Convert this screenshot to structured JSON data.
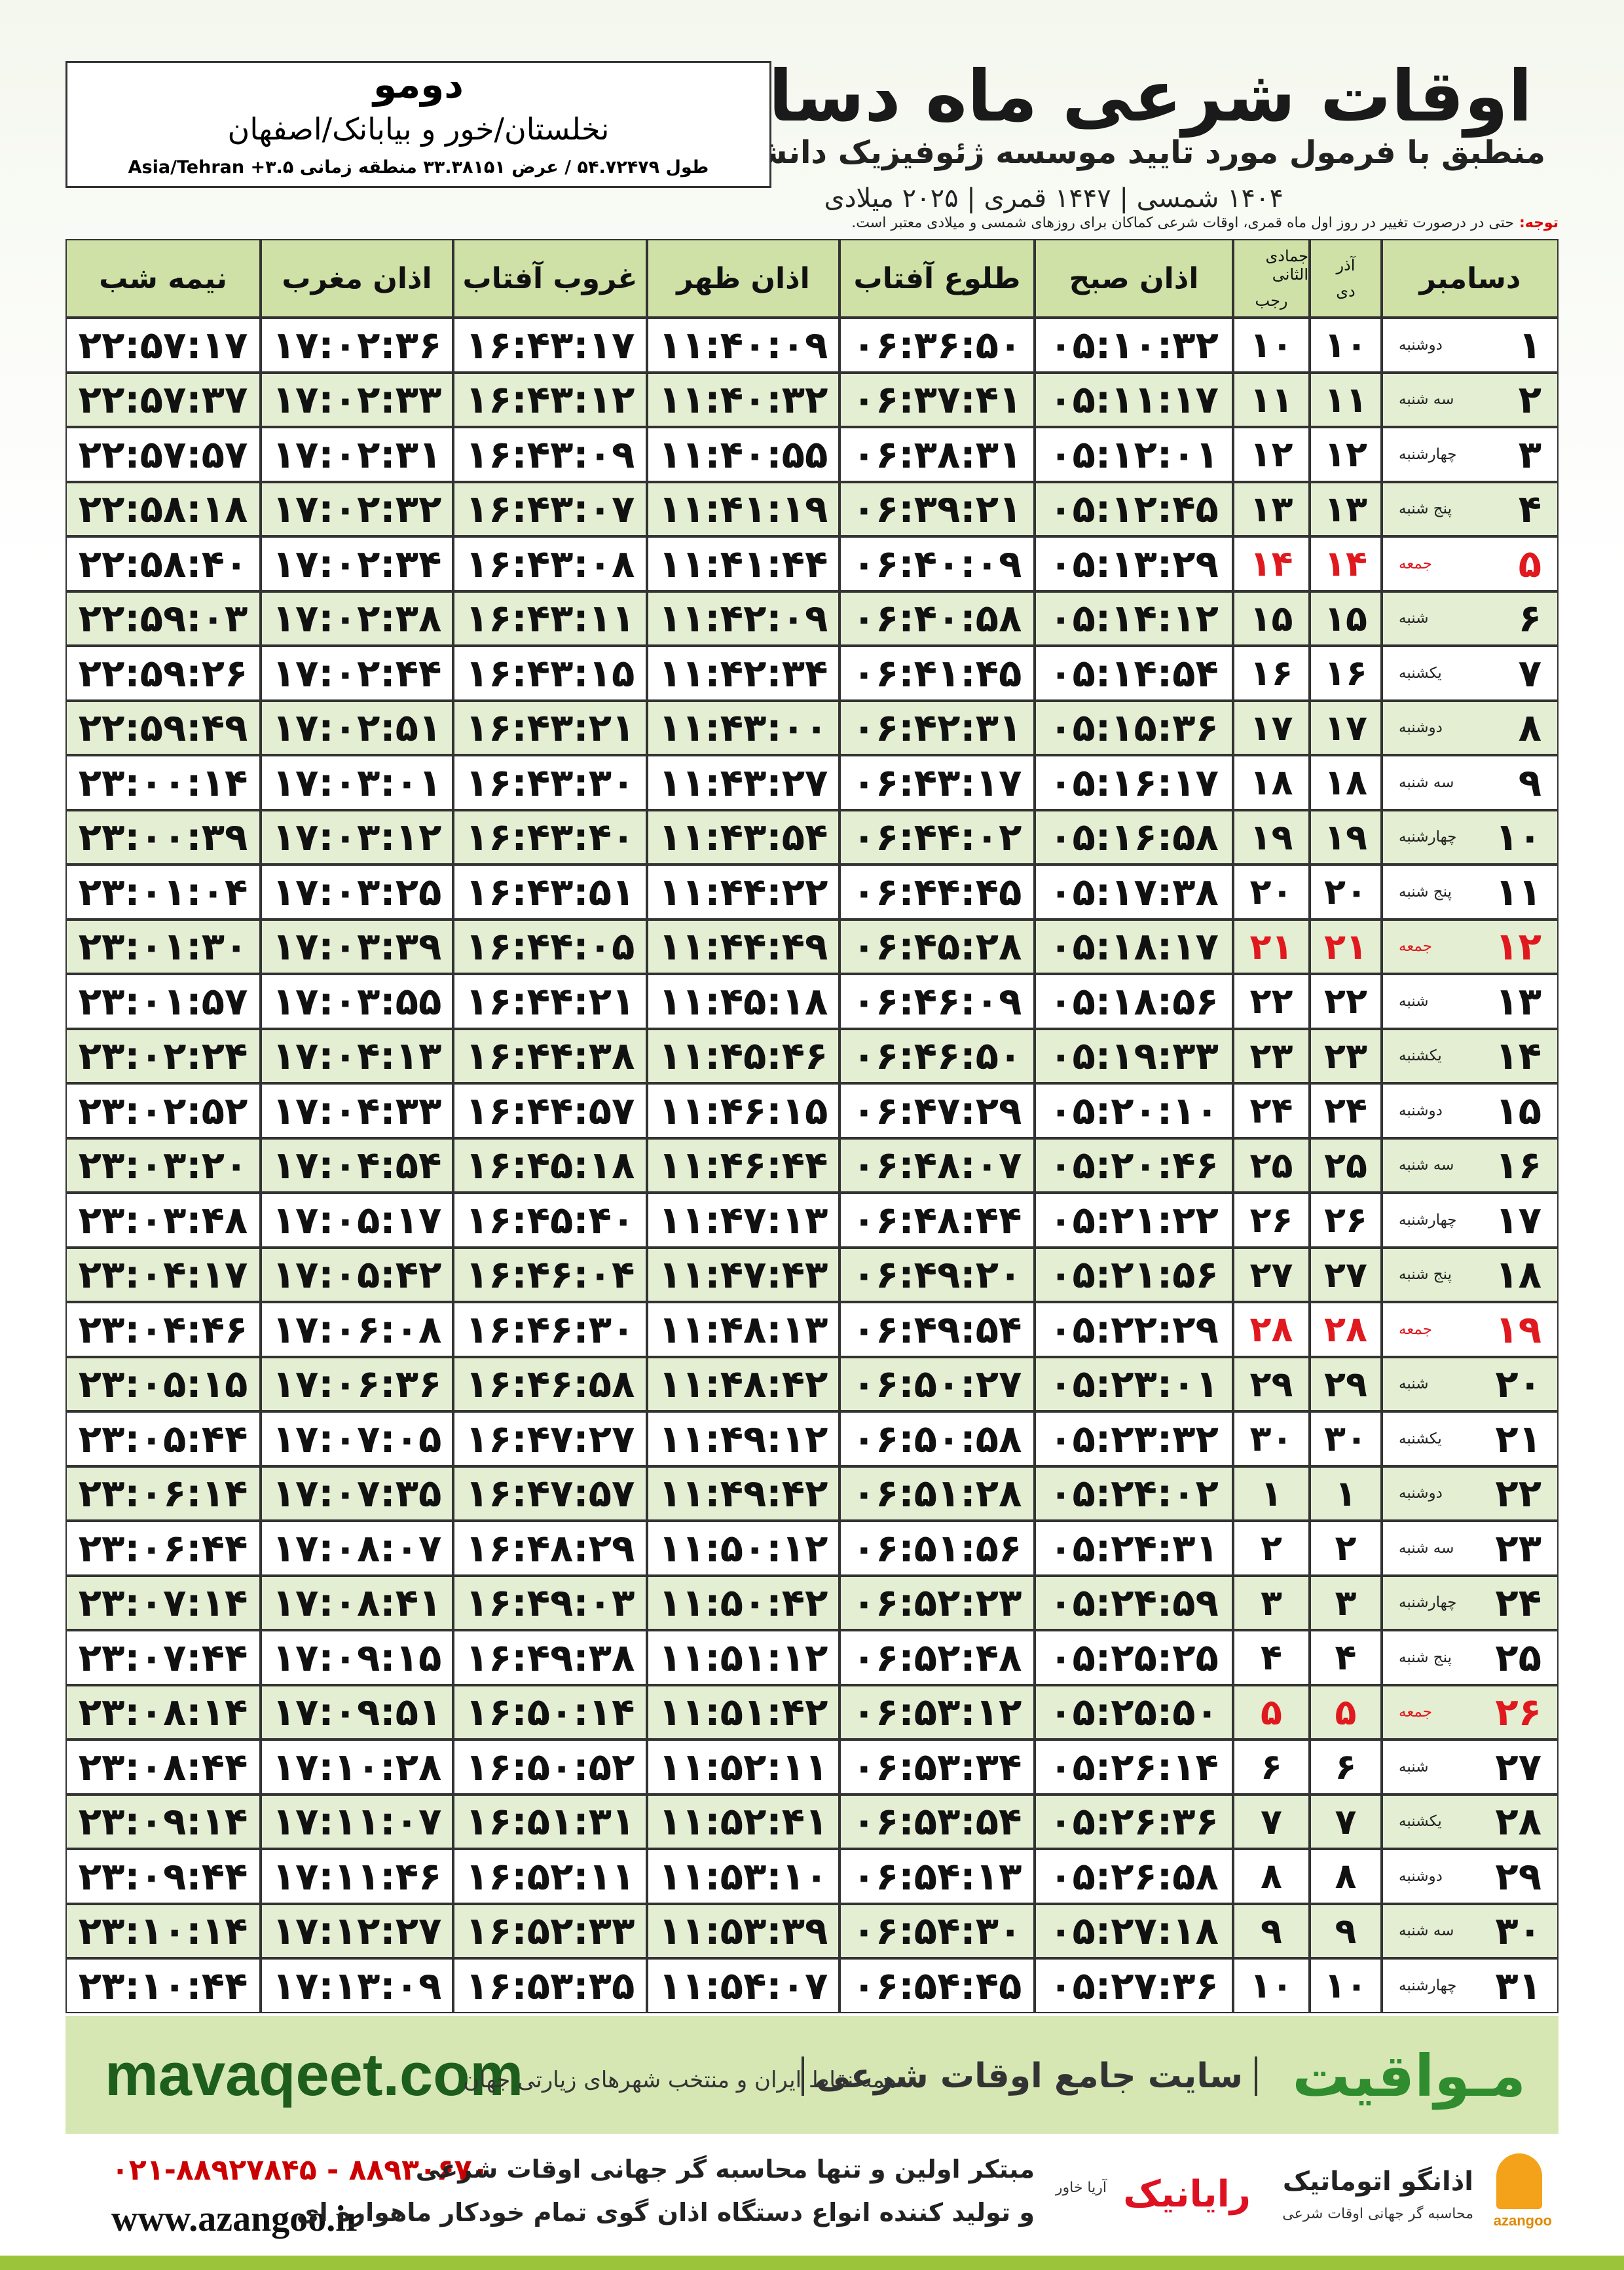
{
  "header": {
    "title": "اوقات شرعی ماه دسامبر",
    "subtitle": "منطبق با فرمول مورد تایید موسسه ژئوفیزیک دانشگاه تهران",
    "dates": "۱۴۰۴ شمسی | ۱۴۴۷ قمری | ۲۰۲۵ میلادی"
  },
  "location": {
    "name": "دومو",
    "region": "نخلستان/خور و بیابانک/اصفهان",
    "coords": "طول ۵۴.۷۲۴۷۹ / عرض ۳۳.۳۸۱۵۱ منطقه زمانی ۳.۵+ Asia/Tehran"
  },
  "note": {
    "label": "توجه:",
    "text": "حتی در درصورت تغییر در روز اول ماه قمری، اوقات شرعی کماکان برای روزهای شمسی و میلادی معتبر است."
  },
  "table": {
    "columns": [
      "دسامبر",
      [
        "آذر",
        "دی"
      ],
      [
        "جمادی الثانی",
        "رجب"
      ],
      "اذان صبح",
      "طلوع آفتاب",
      "اذان ظهر",
      "غروب آفتاب",
      "اذان مغرب",
      "نیمه شب"
    ],
    "rows": [
      [
        "۱",
        "دوشنبه",
        "۱۰",
        "۱۰",
        "۰۵:۱۰:۳۲",
        "۰۶:۳۶:۵۰",
        "۱۱:۴۰:۰۹",
        "۱۶:۴۳:۱۷",
        "۱۷:۰۲:۳۶",
        "۲۲:۵۷:۱۷"
      ],
      [
        "۲",
        "سه شنبه",
        "۱۱",
        "۱۱",
        "۰۵:۱۱:۱۷",
        "۰۶:۳۷:۴۱",
        "۱۱:۴۰:۳۲",
        "۱۶:۴۳:۱۲",
        "۱۷:۰۲:۳۳",
        "۲۲:۵۷:۳۷"
      ],
      [
        "۳",
        "چهارشنبه",
        "۱۲",
        "۱۲",
        "۰۵:۱۲:۰۱",
        "۰۶:۳۸:۳۱",
        "۱۱:۴۰:۵۵",
        "۱۶:۴۳:۰۹",
        "۱۷:۰۲:۳۱",
        "۲۲:۵۷:۵۷"
      ],
      [
        "۴",
        "پنج شنبه",
        "۱۳",
        "۱۳",
        "۰۵:۱۲:۴۵",
        "۰۶:۳۹:۲۱",
        "۱۱:۴۱:۱۹",
        "۱۶:۴۳:۰۷",
        "۱۷:۰۲:۳۲",
        "۲۲:۵۸:۱۸"
      ],
      [
        "۵",
        "جمعه",
        "۱۴",
        "۱۴",
        "۰۵:۱۳:۲۹",
        "۰۶:۴۰:۰۹",
        "۱۱:۴۱:۴۴",
        "۱۶:۴۳:۰۸",
        "۱۷:۰۲:۳۴",
        "۲۲:۵۸:۴۰"
      ],
      [
        "۶",
        "شنبه",
        "۱۵",
        "۱۵",
        "۰۵:۱۴:۱۲",
        "۰۶:۴۰:۵۸",
        "۱۱:۴۲:۰۹",
        "۱۶:۴۳:۱۱",
        "۱۷:۰۲:۳۸",
        "۲۲:۵۹:۰۳"
      ],
      [
        "۷",
        "یکشنبه",
        "۱۶",
        "۱۶",
        "۰۵:۱۴:۵۴",
        "۰۶:۴۱:۴۵",
        "۱۱:۴۲:۳۴",
        "۱۶:۴۳:۱۵",
        "۱۷:۰۲:۴۴",
        "۲۲:۵۹:۲۶"
      ],
      [
        "۸",
        "دوشنبه",
        "۱۷",
        "۱۷",
        "۰۵:۱۵:۳۶",
        "۰۶:۴۲:۳۱",
        "۱۱:۴۳:۰۰",
        "۱۶:۴۳:۲۱",
        "۱۷:۰۲:۵۱",
        "۲۲:۵۹:۴۹"
      ],
      [
        "۹",
        "سه شنبه",
        "۱۸",
        "۱۸",
        "۰۵:۱۶:۱۷",
        "۰۶:۴۳:۱۷",
        "۱۱:۴۳:۲۷",
        "۱۶:۴۳:۳۰",
        "۱۷:۰۳:۰۱",
        "۲۳:۰۰:۱۴"
      ],
      [
        "۱۰",
        "چهارشنبه",
        "۱۹",
        "۱۹",
        "۰۵:۱۶:۵۸",
        "۰۶:۴۴:۰۲",
        "۱۱:۴۳:۵۴",
        "۱۶:۴۳:۴۰",
        "۱۷:۰۳:۱۲",
        "۲۳:۰۰:۳۹"
      ],
      [
        "۱۱",
        "پنج شنبه",
        "۲۰",
        "۲۰",
        "۰۵:۱۷:۳۸",
        "۰۶:۴۴:۴۵",
        "۱۱:۴۴:۲۲",
        "۱۶:۴۳:۵۱",
        "۱۷:۰۳:۲۵",
        "۲۳:۰۱:۰۴"
      ],
      [
        "۱۲",
        "جمعه",
        "۲۱",
        "۲۱",
        "۰۵:۱۸:۱۷",
        "۰۶:۴۵:۲۸",
        "۱۱:۴۴:۴۹",
        "۱۶:۴۴:۰۵",
        "۱۷:۰۳:۳۹",
        "۲۳:۰۱:۳۰"
      ],
      [
        "۱۳",
        "شنبه",
        "۲۲",
        "۲۲",
        "۰۵:۱۸:۵۶",
        "۰۶:۴۶:۰۹",
        "۱۱:۴۵:۱۸",
        "۱۶:۴۴:۲۱",
        "۱۷:۰۳:۵۵",
        "۲۳:۰۱:۵۷"
      ],
      [
        "۱۴",
        "یکشنبه",
        "۲۳",
        "۲۳",
        "۰۵:۱۹:۳۳",
        "۰۶:۴۶:۵۰",
        "۱۱:۴۵:۴۶",
        "۱۶:۴۴:۳۸",
        "۱۷:۰۴:۱۳",
        "۲۳:۰۲:۲۴"
      ],
      [
        "۱۵",
        "دوشنبه",
        "۲۴",
        "۲۴",
        "۰۵:۲۰:۱۰",
        "۰۶:۴۷:۲۹",
        "۱۱:۴۶:۱۵",
        "۱۶:۴۴:۵۷",
        "۱۷:۰۴:۳۳",
        "۲۳:۰۲:۵۲"
      ],
      [
        "۱۶",
        "سه شنبه",
        "۲۵",
        "۲۵",
        "۰۵:۲۰:۴۶",
        "۰۶:۴۸:۰۷",
        "۱۱:۴۶:۴۴",
        "۱۶:۴۵:۱۸",
        "۱۷:۰۴:۵۴",
        "۲۳:۰۳:۲۰"
      ],
      [
        "۱۷",
        "چهارشنبه",
        "۲۶",
        "۲۶",
        "۰۵:۲۱:۲۲",
        "۰۶:۴۸:۴۴",
        "۱۱:۴۷:۱۳",
        "۱۶:۴۵:۴۰",
        "۱۷:۰۵:۱۷",
        "۲۳:۰۳:۴۸"
      ],
      [
        "۱۸",
        "پنج شنبه",
        "۲۷",
        "۲۷",
        "۰۵:۲۱:۵۶",
        "۰۶:۴۹:۲۰",
        "۱۱:۴۷:۴۳",
        "۱۶:۴۶:۰۴",
        "۱۷:۰۵:۴۲",
        "۲۳:۰۴:۱۷"
      ],
      [
        "۱۹",
        "جمعه",
        "۲۸",
        "۲۸",
        "۰۵:۲۲:۲۹",
        "۰۶:۴۹:۵۴",
        "۱۱:۴۸:۱۳",
        "۱۶:۴۶:۳۰",
        "۱۷:۰۶:۰۸",
        "۲۳:۰۴:۴۶"
      ],
      [
        "۲۰",
        "شنبه",
        "۲۹",
        "۲۹",
        "۰۵:۲۳:۰۱",
        "۰۶:۵۰:۲۷",
        "۱۱:۴۸:۴۲",
        "۱۶:۴۶:۵۸",
        "۱۷:۰۶:۳۶",
        "۲۳:۰۵:۱۵"
      ],
      [
        "۲۱",
        "یکشنبه",
        "۳۰",
        "۳۰",
        "۰۵:۲۳:۳۲",
        "۰۶:۵۰:۵۸",
        "۱۱:۴۹:۱۲",
        "۱۶:۴۷:۲۷",
        "۱۷:۰۷:۰۵",
        "۲۳:۰۵:۴۴"
      ],
      [
        "۲۲",
        "دوشنبه",
        "۱",
        "۱",
        "۰۵:۲۴:۰۲",
        "۰۶:۵۱:۲۸",
        "۱۱:۴۹:۴۲",
        "۱۶:۴۷:۵۷",
        "۱۷:۰۷:۳۵",
        "۲۳:۰۶:۱۴"
      ],
      [
        "۲۳",
        "سه شنبه",
        "۲",
        "۲",
        "۰۵:۲۴:۳۱",
        "۰۶:۵۱:۵۶",
        "۱۱:۵۰:۱۲",
        "۱۶:۴۸:۲۹",
        "۱۷:۰۸:۰۷",
        "۲۳:۰۶:۴۴"
      ],
      [
        "۲۴",
        "چهارشنبه",
        "۳",
        "۳",
        "۰۵:۲۴:۵۹",
        "۰۶:۵۲:۲۳",
        "۱۱:۵۰:۴۲",
        "۱۶:۴۹:۰۳",
        "۱۷:۰۸:۴۱",
        "۲۳:۰۷:۱۴"
      ],
      [
        "۲۵",
        "پنج شنبه",
        "۴",
        "۴",
        "۰۵:۲۵:۲۵",
        "۰۶:۵۲:۴۸",
        "۱۱:۵۱:۱۲",
        "۱۶:۴۹:۳۸",
        "۱۷:۰۹:۱۵",
        "۲۳:۰۷:۴۴"
      ],
      [
        "۲۶",
        "جمعه",
        "۵",
        "۵",
        "۰۵:۲۵:۵۰",
        "۰۶:۵۳:۱۲",
        "۱۱:۵۱:۴۲",
        "۱۶:۵۰:۱۴",
        "۱۷:۰۹:۵۱",
        "۲۳:۰۸:۱۴"
      ],
      [
        "۲۷",
        "شنبه",
        "۶",
        "۶",
        "۰۵:۲۶:۱۴",
        "۰۶:۵۳:۳۴",
        "۱۱:۵۲:۱۱",
        "۱۶:۵۰:۵۲",
        "۱۷:۱۰:۲۸",
        "۲۳:۰۸:۴۴"
      ],
      [
        "۲۸",
        "یکشنبه",
        "۷",
        "۷",
        "۰۵:۲۶:۳۶",
        "۰۶:۵۳:۵۴",
        "۱۱:۵۲:۴۱",
        "۱۶:۵۱:۳۱",
        "۱۷:۱۱:۰۷",
        "۲۳:۰۹:۱۴"
      ],
      [
        "۲۹",
        "دوشنبه",
        "۸",
        "۸",
        "۰۵:۲۶:۵۸",
        "۰۶:۵۴:۱۳",
        "۱۱:۵۳:۱۰",
        "۱۶:۵۲:۱۱",
        "۱۷:۱۱:۴۶",
        "۲۳:۰۹:۴۴"
      ],
      [
        "۳۰",
        "سه شنبه",
        "۹",
        "۹",
        "۰۵:۲۷:۱۸",
        "۰۶:۵۴:۳۰",
        "۱۱:۵۳:۳۹",
        "۱۶:۵۲:۳۳",
        "۱۷:۱۲:۲۷",
        "۲۳:۱۰:۱۴"
      ],
      [
        "۳۱",
        "چهارشنبه",
        "۱۰",
        "۱۰",
        "۰۵:۲۷:۳۶",
        "۰۶:۵۴:۴۵",
        "۱۱:۵۴:۰۷",
        "۱۶:۵۳:۳۵",
        "۱۷:۱۳:۰۹",
        "۲۳:۱۰:۴۴"
      ]
    ]
  },
  "banner": {
    "url": "mavaqeet.com",
    "logo": "مـواقیت",
    "slogan": "سایت جامع اوقات شرعی",
    "tagline": "همه نقاط ایران و منتخب شهرهای زیارتی جهان"
  },
  "footer": {
    "phones": "۰۲۱-۸۸۹۲۷۸۴۵ - ۸۸۹۳۰۶۷۰",
    "website": "www.azangoo.ir",
    "line1": "مبتکر اولین و تنها محاسبه گر جهانی اوقات شرعی",
    "line2": "و تولید کننده انواع دستگاه اذان گوی تمام خودکار ماهواره ای",
    "brand1": "رایانیک",
    "brand1_sub": "آریا خاور",
    "brand2": "اذانگو اتوماتیک",
    "brand2_sub": "محاسبه گر جهانی اوقات شرعی",
    "brand3": "azangoo"
  }
}
